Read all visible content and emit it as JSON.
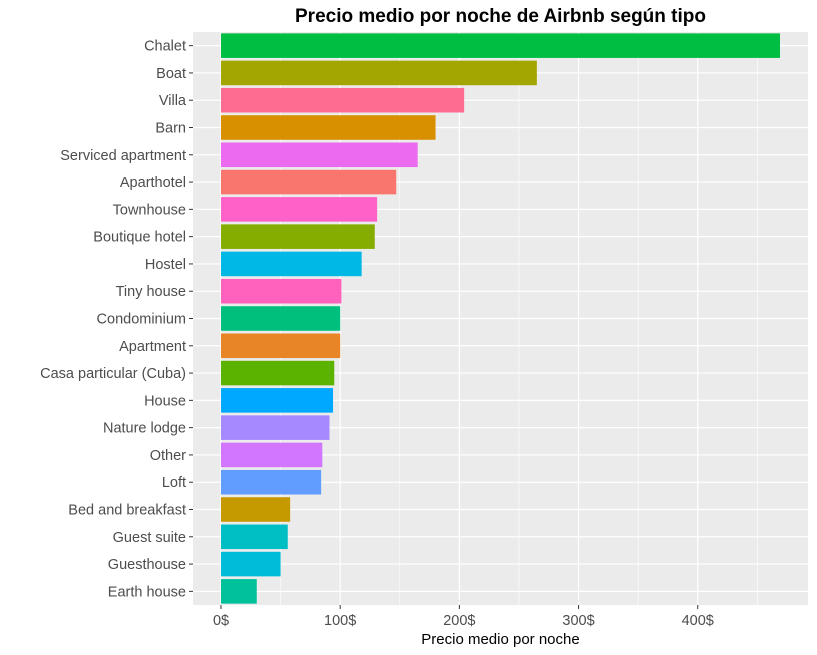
{
  "chart_data": {
    "type": "bar",
    "orientation": "horizontal",
    "title": "Precio medio por noche de Airbnb según tipo",
    "xlabel": "Precio medio por noche",
    "ylabel": "",
    "xlim": [
      -23.5,
      492.5
    ],
    "x_ticks": [
      0,
      100,
      200,
      300,
      400
    ],
    "x_tick_labels": [
      "0$",
      "100$",
      "200$",
      "300$",
      "400$"
    ],
    "grid": true,
    "legend": "none",
    "categories": [
      "Chalet",
      "Boat",
      "Villa",
      "Barn",
      "Serviced apartment",
      "Aparthotel",
      "Townhouse",
      "Boutique hotel",
      "Hostel",
      "Tiny house",
      "Condominium",
      "Apartment",
      "Casa particular (Cuba)",
      "House",
      "Nature lodge",
      "Other",
      "Loft",
      "Bed and breakfast",
      "Guest suite",
      "Guesthouse",
      "Earth house"
    ],
    "values": [
      469,
      265,
      204,
      180,
      165,
      147,
      131,
      129,
      118,
      101,
      100,
      100,
      95,
      94,
      91,
      85,
      84,
      58,
      56,
      50,
      30
    ],
    "colors": [
      "#00BE41",
      "#A3A500",
      "#FF6C91",
      "#D89000",
      "#EB6AEF",
      "#F8766D",
      "#FF61C9",
      "#85AD00",
      "#00B8E5",
      "#FF62BC",
      "#00BF7D",
      "#E88526",
      "#5BB300",
      "#00A9FF",
      "#A58AFF",
      "#D376FF",
      "#619CFF",
      "#C49A00",
      "#00BFC4",
      "#00BCD8",
      "#00C19A"
    ]
  }
}
